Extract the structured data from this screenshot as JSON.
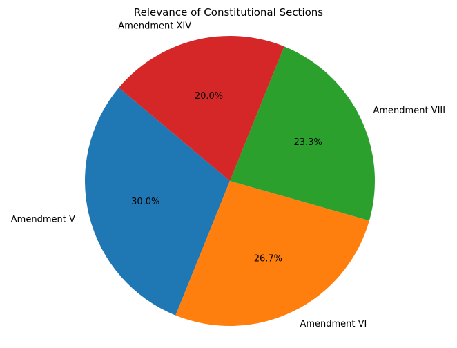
{
  "chart_data": {
    "type": "pie",
    "title": "Relevance of Constitutional Sections",
    "categories": [
      "Amendment V",
      "Amendment VI",
      "Amendment VIII",
      "Amendment XIV"
    ],
    "values": [
      30.0,
      26.7,
      23.3,
      20.0
    ],
    "percent_labels": [
      "30.0%",
      "26.7%",
      "23.3%",
      "20.0%"
    ],
    "colors": [
      "#1f77b4",
      "#ff7f0e",
      "#2ca02c",
      "#d62728"
    ],
    "start_angle_deg": 140,
    "direction": "counterclockwise",
    "legend": "none"
  }
}
